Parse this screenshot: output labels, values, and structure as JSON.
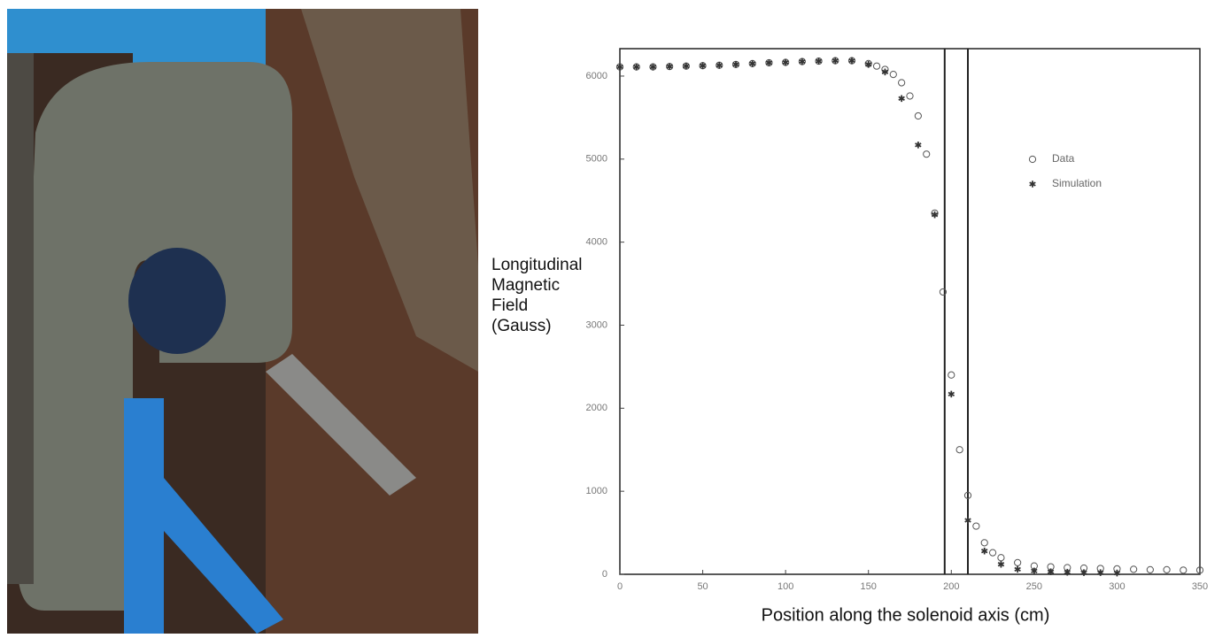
{
  "chart_data": {
    "type": "scatter",
    "xlabel": "Position along the solenoid axis (cm)",
    "ylabel": [
      "Longitudinal",
      "Magnetic",
      "Field",
      "(Gauss)"
    ],
    "xlim": [
      0,
      350
    ],
    "xticks": [
      0,
      50,
      100,
      150,
      200,
      250,
      300,
      350
    ],
    "ylim": [
      0,
      6330
    ],
    "yticks": [
      0,
      1000,
      2000,
      3000,
      4000,
      5000,
      6000
    ],
    "vlines": [
      196,
      210
    ],
    "legend": "upper right",
    "series": [
      {
        "name": "Data",
        "color": "#555555",
        "marker": "circle",
        "x": [
          0,
          10,
          20,
          30,
          40,
          50,
          60,
          70,
          80,
          90,
          100,
          110,
          120,
          130,
          140,
          150,
          155,
          160,
          165,
          170,
          175,
          180,
          185,
          190,
          195,
          200,
          205,
          210,
          215,
          220,
          225,
          230,
          240,
          250,
          260,
          270,
          280,
          290,
          300,
          310,
          320,
          330,
          340,
          350
        ],
        "values": [
          6110,
          6110,
          6110,
          6115,
          6120,
          6125,
          6130,
          6140,
          6150,
          6160,
          6165,
          6175,
          6180,
          6185,
          6185,
          6150,
          6120,
          6080,
          6020,
          5920,
          5760,
          5520,
          5060,
          4350,
          3400,
          2400,
          1500,
          950,
          580,
          380,
          260,
          200,
          140,
          100,
          90,
          80,
          75,
          70,
          65,
          60,
          55,
          55,
          50,
          50
        ]
      },
      {
        "name": "Simulation",
        "color": "#333333",
        "marker": "star",
        "x": [
          0,
          10,
          20,
          30,
          40,
          50,
          60,
          70,
          80,
          90,
          100,
          110,
          120,
          130,
          140,
          150,
          160,
          170,
          180,
          190,
          200,
          210,
          220,
          230,
          240,
          250,
          260,
          270,
          280,
          290,
          300
        ],
        "values": [
          6110,
          6110,
          6110,
          6115,
          6120,
          6125,
          6130,
          6140,
          6150,
          6160,
          6165,
          6175,
          6180,
          6185,
          6185,
          6140,
          6050,
          5730,
          5170,
          4330,
          2170,
          650,
          280,
          120,
          60,
          40,
          30,
          25,
          20,
          20,
          15
        ]
      }
    ]
  }
}
